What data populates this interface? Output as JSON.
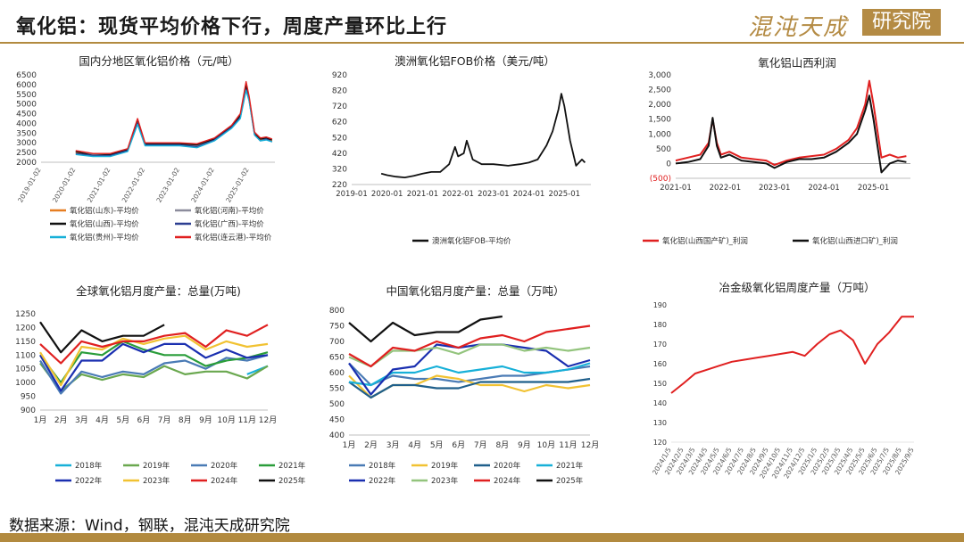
{
  "header": {
    "title": "氧化铝：现货平均价格下行，周度产量环比上行"
  },
  "logo": {
    "text": "混沌天成",
    "box": "研究院",
    "color": "#b48b44"
  },
  "footer": {
    "source": "数据来源：Wind，钢联，混沌天成研究院"
  },
  "colors": {
    "accent": "#b28a3f"
  },
  "chart_data": [
    {
      "type": "line",
      "title": "国内分地区氧化铝价格（元/吨）",
      "x": [
        "2019-01-02",
        "2019-07-02",
        "2020-01-02",
        "2020-07-02",
        "2021-01-02",
        "2021-07-02",
        "2021-10-15",
        "2022-01-02",
        "2022-07-02",
        "2023-01-02",
        "2023-07-02",
        "2024-01-02",
        "2024-07-02",
        "2024-10-01",
        "2024-12-01",
        "2025-01-02",
        "2025-03-01",
        "2025-05-01",
        "2025-07-01",
        "2025-09-01"
      ],
      "xticks": [
        "2019-01-02",
        "2020-01-02",
        "2021-01-02",
        "2022-01-02",
        "2023-01-02",
        "2024-01-02",
        "2025-01-02"
      ],
      "ylim": [
        2000,
        6500
      ],
      "yticks": [
        2000,
        2500,
        3000,
        3500,
        4000,
        4500,
        5000,
        5500,
        6000,
        6500
      ],
      "series": [
        {
          "name": "氧化铝(山东)-平均价",
          "color": "#e67e22",
          "values": [
            null,
            null,
            2500,
            2400,
            2400,
            2600,
            4100,
            2900,
            2900,
            2950,
            2900,
            3150,
            3800,
            4300,
            5800,
            5200,
            3500,
            3150,
            3200,
            3100
          ]
        },
        {
          "name": "氧化铝(河南)-平均价",
          "color": "#8c8c9c",
          "values": [
            null,
            null,
            2550,
            2400,
            2350,
            2650,
            4150,
            2950,
            2950,
            2950,
            2850,
            3200,
            3850,
            4400,
            5900,
            5300,
            3500,
            3200,
            3250,
            3150
          ]
        },
        {
          "name": "氧化铝(山西)-平均价",
          "color": "#111111",
          "values": [
            null,
            null,
            2550,
            2350,
            2400,
            2650,
            4200,
            2950,
            2950,
            2950,
            2900,
            3200,
            3850,
            4400,
            5950,
            5300,
            3450,
            3200,
            3250,
            3150
          ]
        },
        {
          "name": "氧化铝(广西)-平均价",
          "color": "#2c3e91",
          "values": [
            null,
            null,
            2450,
            2350,
            2350,
            2600,
            4000,
            2900,
            2900,
            2900,
            2800,
            3150,
            3800,
            4300,
            5750,
            5200,
            3400,
            3100,
            3200,
            3050
          ]
        },
        {
          "name": "氧化铝(贵州)-平均价",
          "color": "#17b0d8",
          "values": [
            null,
            null,
            2400,
            2300,
            2300,
            2550,
            3950,
            2850,
            2850,
            2850,
            2750,
            3100,
            3750,
            4250,
            5700,
            5150,
            3400,
            3100,
            3150,
            3050
          ]
        },
        {
          "name": "氧化铝(连云港)-平均价",
          "color": "#e02020",
          "values": [
            null,
            null,
            2600,
            2450,
            2450,
            2700,
            4250,
            3000,
            3000,
            3000,
            2950,
            3250,
            3900,
            4500,
            6150,
            5400,
            3550,
            3250,
            3300,
            3200
          ]
        }
      ]
    },
    {
      "type": "line",
      "title": "澳洲氧化铝FOB价格（美元/吨）",
      "x": [
        "2019-11",
        "2020-01",
        "2020-04",
        "2020-07",
        "2020-10",
        "2021-01",
        "2021-04",
        "2021-07",
        "2021-10",
        "2021-12",
        "2022-01",
        "2022-03",
        "2022-04",
        "2022-06",
        "2022-09",
        "2023-01",
        "2023-06",
        "2023-10",
        "2024-01",
        "2024-04",
        "2024-07",
        "2024-09",
        "2024-11",
        "2024-12",
        "2025-01",
        "2025-03",
        "2025-05",
        "2025-07",
        "2025-08"
      ],
      "xticks": [
        "2019-01",
        "2020-01",
        "2021-01",
        "2022-01",
        "2023-01",
        "2024-01",
        "2025-01"
      ],
      "ylim": [
        220,
        920
      ],
      "yticks": [
        220,
        320,
        420,
        520,
        620,
        720,
        820,
        920
      ],
      "series": [
        {
          "name": "澳洲氧化铝FOB-平均价",
          "color": "#111111",
          "values": [
            290,
            280,
            270,
            265,
            275,
            290,
            300,
            300,
            350,
            460,
            400,
            420,
            500,
            380,
            350,
            350,
            340,
            350,
            360,
            380,
            470,
            560,
            700,
            800,
            720,
            500,
            340,
            380,
            360
          ]
        }
      ]
    },
    {
      "type": "line",
      "title": "氧化铝山西利润",
      "x": [
        "2021-01",
        "2021-04",
        "2021-07",
        "2021-09",
        "2021-10",
        "2021-11",
        "2021-12",
        "2022-02",
        "2022-05",
        "2022-08",
        "2022-11",
        "2023-01",
        "2023-04",
        "2023-07",
        "2023-10",
        "2024-01",
        "2024-04",
        "2024-07",
        "2024-09",
        "2024-11",
        "2024-12",
        "2025-01",
        "2025-03",
        "2025-05",
        "2025-07",
        "2025-09"
      ],
      "xticks": [
        "2021-01",
        "2022-01",
        "2023-01",
        "2024-01",
        "2025-01"
      ],
      "ylim": [
        -500,
        3000
      ],
      "yticks": [
        -500,
        0,
        500,
        1000,
        1500,
        2000,
        2500,
        3000
      ],
      "series": [
        {
          "name": "氧化铝(山西国产矿)_利润",
          "color": "#e02020",
          "values": [
            100,
            200,
            300,
            700,
            1500,
            700,
            300,
            400,
            200,
            150,
            100,
            -50,
            100,
            200,
            250,
            300,
            500,
            800,
            1200,
            2000,
            2800,
            2000,
            200,
            300,
            200,
            250
          ]
        },
        {
          "name": "氧化铝(山西进口矿)_利润",
          "color": "#111111",
          "values": [
            0,
            50,
            150,
            600,
            1550,
            600,
            200,
            300,
            100,
            50,
            0,
            -150,
            50,
            150,
            150,
            200,
            400,
            700,
            1000,
            1800,
            2300,
            1500,
            -300,
            0,
            100,
            50
          ]
        }
      ]
    },
    {
      "type": "line",
      "title": "全球氧化铝月度产量：总量(万吨)",
      "categories": [
        "1月",
        "2月",
        "3月",
        "4月",
        "5月",
        "6月",
        "7月",
        "8月",
        "9月",
        "10月",
        "11月",
        "12月"
      ],
      "ylim": [
        900,
        1250
      ],
      "yticks": [
        900,
        950,
        1000,
        1050,
        1100,
        1150,
        1200,
        1250
      ],
      "series": [
        {
          "name": "2018年",
          "color": "#17b0d8",
          "values": [
            null,
            null,
            null,
            null,
            null,
            null,
            null,
            null,
            null,
            null,
            1030,
            1060
          ]
        },
        {
          "name": "2019年",
          "color": "#6aa84f",
          "values": [
            1070,
            970,
            1030,
            1010,
            1030,
            1020,
            1060,
            1030,
            1040,
            1040,
            1015,
            1060
          ]
        },
        {
          "name": "2020年",
          "color": "#4a7bb5",
          "values": [
            1080,
            960,
            1040,
            1020,
            1040,
            1030,
            1070,
            1080,
            1050,
            1090,
            1080,
            1100
          ]
        },
        {
          "name": "2021年",
          "color": "#2a9d3a",
          "values": [
            1100,
            1000,
            1110,
            1100,
            1150,
            1120,
            1100,
            1100,
            1060,
            1080,
            1090,
            1110
          ]
        },
        {
          "name": "2022年",
          "color": "#1a2fb0",
          "values": [
            1100,
            970,
            1080,
            1080,
            1140,
            1110,
            1140,
            1140,
            1090,
            1120,
            1090,
            1100
          ]
        },
        {
          "name": "2023年",
          "color": "#f1c232",
          "values": [
            1110,
            990,
            1130,
            1120,
            1160,
            1140,
            1160,
            1170,
            1120,
            1150,
            1130,
            1140
          ]
        },
        {
          "name": "2024年",
          "color": "#e02020",
          "values": [
            1140,
            1070,
            1150,
            1130,
            1150,
            1150,
            1170,
            1180,
            1130,
            1190,
            1170,
            1210
          ]
        },
        {
          "name": "2025年",
          "color": "#111111",
          "values": [
            1220,
            1110,
            1190,
            1150,
            1170,
            1170,
            1210,
            null,
            null,
            null,
            null,
            null
          ]
        }
      ]
    },
    {
      "type": "line",
      "title": "中国氧化铝月度产量：总量（万吨）",
      "categories": [
        "1月",
        "2月",
        "3月",
        "4月",
        "5月",
        "6月",
        "7月",
        "8月",
        "9月",
        "10月",
        "11月",
        "12月"
      ],
      "ylim": [
        400,
        800
      ],
      "yticks": [
        400,
        450,
        500,
        550,
        600,
        650,
        700,
        750,
        800
      ],
      "series": [
        {
          "name": "2018年",
          "color": "#4a7bb5",
          "values": [
            630,
            560,
            590,
            580,
            580,
            570,
            580,
            590,
            590,
            600,
            610,
            620
          ]
        },
        {
          "name": "2019年",
          "color": "#f1c232",
          "values": [
            590,
            520,
            560,
            560,
            590,
            580,
            560,
            560,
            540,
            560,
            550,
            560
          ]
        },
        {
          "name": "2020年",
          "color": "#1f5f8b",
          "values": [
            570,
            520,
            560,
            560,
            550,
            550,
            570,
            570,
            570,
            570,
            570,
            580
          ]
        },
        {
          "name": "2021年",
          "color": "#17b0d8",
          "values": [
            570,
            560,
            600,
            600,
            620,
            600,
            610,
            620,
            600,
            600,
            610,
            630
          ]
        },
        {
          "name": "2022年",
          "color": "#1a2fb0",
          "values": [
            630,
            530,
            610,
            620,
            690,
            680,
            690,
            690,
            680,
            670,
            620,
            640
          ]
        },
        {
          "name": "2023年",
          "color": "#93c47d",
          "values": [
            650,
            620,
            670,
            670,
            680,
            660,
            690,
            690,
            670,
            680,
            670,
            680
          ]
        },
        {
          "name": "2024年",
          "color": "#e02020",
          "values": [
            660,
            620,
            680,
            670,
            700,
            680,
            710,
            720,
            700,
            730,
            740,
            750
          ]
        },
        {
          "name": "2025年",
          "color": "#111111",
          "values": [
            760,
            700,
            760,
            720,
            730,
            730,
            770,
            780,
            null,
            null,
            null,
            null
          ]
        }
      ]
    },
    {
      "type": "line",
      "title": "冶金级氧化铝周度产量（万吨）",
      "x": [
        "2024/1/5",
        "2024/2/5",
        "2024/3/5",
        "2024/4/5",
        "2024/5/5",
        "2024/6/5",
        "2024/7/5",
        "2024/8/5",
        "2024/9/5",
        "2024/10/5",
        "2024/11/5",
        "2024/12/5",
        "2025/1/5",
        "2025/2/5",
        "2025/3/5",
        "2025/4/5",
        "2025/5/5",
        "2025/6/5",
        "2025/7/5",
        "2025/8/5",
        "2025/9/5"
      ],
      "ylim": [
        120,
        190
      ],
      "yticks": [
        120,
        130,
        140,
        150,
        160,
        170,
        180,
        190
      ],
      "series": [
        {
          "name": "冶金级氧化铝周度产量",
          "color": "#e02020",
          "values": [
            145,
            150,
            155,
            157,
            159,
            161,
            162,
            163,
            164,
            165,
            166,
            164,
            170,
            175,
            177,
            172,
            160,
            170,
            176,
            184,
            184
          ]
        }
      ]
    }
  ]
}
